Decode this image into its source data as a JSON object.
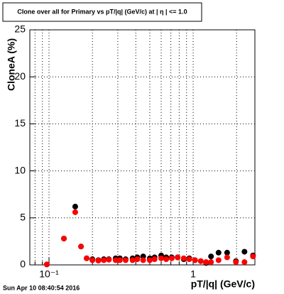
{
  "chart_data": {
    "type": "scatter",
    "title": "Clone  over all for Primary vs pT/|q| (GeV/c) at | η | <= 1.0",
    "x_label": "pT/|q| (GeV/c)",
    "y_label": "CloneA (%)",
    "footer": "Sun Apr 10 08:40:54 2016",
    "x_log": true,
    "grid": true,
    "xlim": [
      0.0736,
      2.68
    ],
    "ylim": [
      0,
      25
    ],
    "xticks": [
      {
        "value": 0.1,
        "label": "10⁻¹"
      },
      1
    ],
    "xminor": [
      0.08,
      0.09,
      0.2,
      0.3,
      0.4,
      0.5,
      0.6,
      0.7,
      0.8,
      0.9,
      2
    ],
    "yticks": [
      0,
      5,
      10,
      15,
      20,
      25
    ],
    "x": [
      0.0966,
      0.1269,
      0.152,
      0.1667,
      0.1824,
      0.2,
      0.22,
      0.24,
      0.26,
      0.29,
      0.31,
      0.34,
      0.38,
      0.41,
      0.45,
      0.5,
      0.54,
      0.6,
      0.65,
      0.71,
      0.78,
      0.86,
      0.94,
      1.03,
      1.13,
      1.23,
      1.33,
      1.5,
      1.72,
      1.98,
      2.27,
      2.6
    ],
    "series": [
      {
        "color": "#000000",
        "values": [
          0.05,
          2.8,
          6.2,
          1.95,
          0.7,
          0.6,
          0.5,
          0.6,
          0.6,
          0.7,
          0.7,
          0.6,
          0.7,
          0.8,
          0.9,
          0.7,
          0.8,
          1.0,
          0.8,
          0.8,
          0.8,
          0.6,
          0.7,
          0.5,
          0.4,
          0.2,
          0.9,
          1.3,
          1.3,
          0.4,
          1.4,
          1.0
        ]
      },
      {
        "color": "#ff0000",
        "values": [
          0.05,
          2.8,
          5.6,
          1.95,
          0.7,
          0.5,
          0.45,
          0.5,
          0.55,
          0.5,
          0.5,
          0.5,
          0.5,
          0.6,
          0.5,
          0.5,
          0.6,
          0.7,
          0.6,
          0.7,
          0.8,
          0.7,
          0.6,
          0.5,
          0.4,
          0.3,
          0.3,
          0.5,
          0.8,
          0.3,
          0.3,
          0.9
        ]
      }
    ]
  }
}
